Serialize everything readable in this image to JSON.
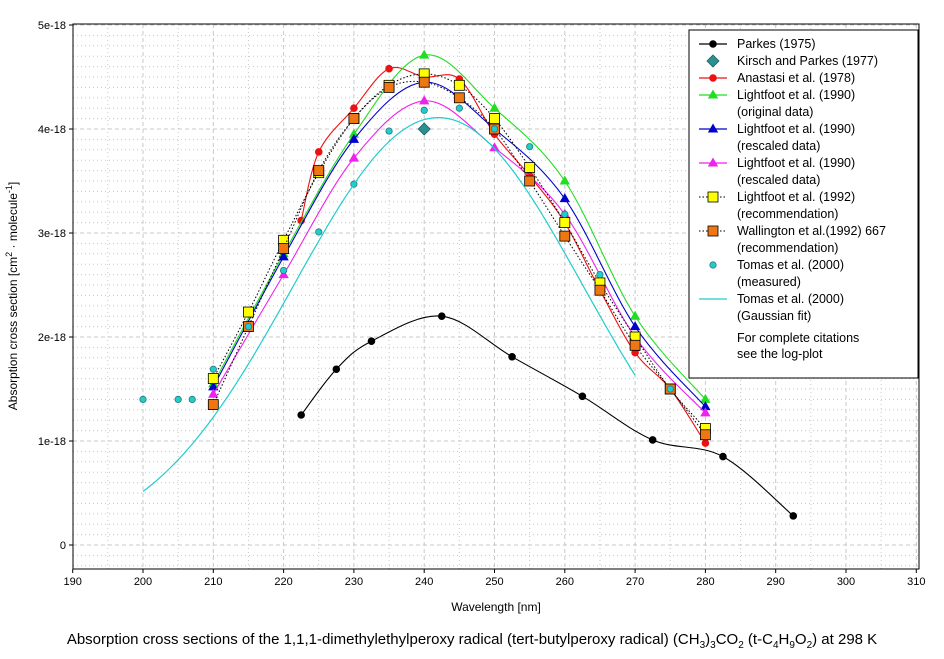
{
  "chart_data": {
    "type": "line",
    "title": "",
    "xlabel": "Wavelength [nm]",
    "ylabel_parts": [
      "Absorption cross section [cm",
      "2",
      " · molecule",
      "-1",
      "]"
    ],
    "xlim": [
      190,
      310
    ],
    "ylim": [
      0,
      5e-18
    ],
    "xticks": [
      190,
      200,
      210,
      220,
      230,
      240,
      250,
      260,
      270,
      280,
      290,
      300,
      310
    ],
    "yticks": [
      {
        "v": 0,
        "label": "0"
      },
      {
        "v": 1e-18,
        "label": "1e-18"
      },
      {
        "v": 2e-18,
        "label": "2e-18"
      },
      {
        "v": 3e-18,
        "label": "3e-18"
      },
      {
        "v": 4e-18,
        "label": "4e-18"
      },
      {
        "v": 5e-18,
        "label": "5e-18"
      }
    ],
    "grid": true,
    "legend_position": "top-right",
    "series": [
      {
        "name": "Parkes (1975)",
        "color": "#000000",
        "marker": "circle",
        "line": "smooth",
        "x": [
          222.5,
          227.5,
          232.5,
          242.5,
          252.5,
          262.5,
          272.5,
          282.5,
          292.5
        ],
        "y": [
          1.25e-18,
          1.69e-18,
          1.96e-18,
          2.2e-18,
          1.81e-18,
          1.43e-18,
          1.01e-18,
          8.5e-19,
          2.8e-19
        ]
      },
      {
        "name": "Kirsch and Parkes (1977)",
        "color": "#2a9090",
        "marker": "diamond",
        "line": "none",
        "x": [
          240
        ],
        "y": [
          4e-18
        ]
      },
      {
        "name": "Anastasi et al. (1978)",
        "color": "#ee1111",
        "marker": "circle",
        "line": "smooth",
        "x": [
          222.5,
          225,
          230,
          235,
          240,
          245,
          250,
          255,
          260,
          265,
          270,
          275,
          280
        ],
        "y": [
          3.12e-18,
          3.78e-18,
          4.2e-18,
          4.58e-18,
          4.5e-18,
          4.48e-18,
          3.95e-18,
          3.55e-18,
          3.1e-18,
          2.45e-18,
          1.85e-18,
          1.5e-18,
          9.8e-19
        ]
      },
      {
        "name": "Lightfoot et al. (1990)",
        "name2": "(original data)",
        "color": "#22dd22",
        "marker": "triangle",
        "line": "smooth",
        "x": [
          210,
          220,
          230,
          240,
          250,
          260,
          270,
          280
        ],
        "y": [
          1.55e-18,
          2.8e-18,
          3.95e-18,
          4.71e-18,
          4.2e-18,
          3.5e-18,
          2.2e-18,
          1.4e-18
        ]
      },
      {
        "name": "Lightfoot et al. (1990)",
        "name2": "(rescaled data)",
        "color": "#0000cc",
        "marker": "triangle",
        "line": "smooth",
        "x": [
          210,
          220,
          230,
          240,
          250,
          260,
          270,
          280
        ],
        "y": [
          1.52e-18,
          2.77e-18,
          3.9e-18,
          4.45e-18,
          4e-18,
          3.33e-18,
          2.1e-18,
          1.33e-18
        ]
      },
      {
        "name": "Lightfoot et al. (1990)",
        "name2": "(rescaled data)",
        "color": "#ee22ee",
        "marker": "triangle",
        "line": "smooth",
        "x": [
          210,
          220,
          230,
          240,
          250,
          260,
          270,
          280
        ],
        "y": [
          1.45e-18,
          2.6e-18,
          3.72e-18,
          4.27e-18,
          3.82e-18,
          3.18e-18,
          2e-18,
          1.27e-18
        ]
      },
      {
        "name": "Lightfoot et al. (1992)",
        "name2": "(recommendation)",
        "color": "#000000",
        "fill": "#ffff00",
        "marker": "square",
        "line": "dotted",
        "x": [
          210,
          215,
          220,
          225,
          230,
          235,
          240,
          245,
          250,
          255,
          260,
          265,
          270,
          275,
          280
        ],
        "y": [
          1.6e-18,
          2.24e-18,
          2.93e-18,
          3.58e-18,
          4.1e-18,
          4.42e-18,
          4.53e-18,
          4.42e-18,
          4.1e-18,
          3.63e-18,
          3.1e-18,
          2.52e-18,
          2e-18,
          1.5e-18,
          1.12e-18
        ]
      },
      {
        "name": "Wallington et al.(1992) 667",
        "name2": "(recommendation)",
        "color": "#000000",
        "fill": "#ee7711",
        "marker": "square",
        "line": "dotted",
        "x": [
          210,
          215,
          220,
          225,
          230,
          235,
          240,
          245,
          250,
          255,
          260,
          265,
          270,
          275,
          280
        ],
        "y": [
          1.35e-18,
          2.1e-18,
          2.85e-18,
          3.6e-18,
          4.1e-18,
          4.4e-18,
          4.45e-18,
          4.3e-18,
          4e-18,
          3.5e-18,
          2.97e-18,
          2.45e-18,
          1.92e-18,
          1.5e-18,
          1.06e-18
        ]
      },
      {
        "name": "Tomas et al. (2000)",
        "name2": "(measured)",
        "color": "#22bbbb",
        "fill": "#22cccc",
        "marker": "smallcircle",
        "line": "none",
        "x": [
          200,
          205,
          207,
          210,
          215,
          220,
          225,
          230,
          235,
          240,
          245,
          250,
          255,
          260,
          265,
          275
        ],
        "y": [
          1.4e-18,
          1.4e-18,
          1.4e-18,
          1.69e-18,
          2.1e-18,
          2.64e-18,
          3.01e-18,
          3.47e-18,
          3.98e-18,
          4.18e-18,
          4.2e-18,
          4e-18,
          3.83e-18,
          3.18e-18,
          2.6e-18,
          1.5e-18
        ]
      },
      {
        "name": "Tomas et al. (2000)",
        "name2": "(Gaussian fit)",
        "color": "#22cccc",
        "marker": "none",
        "line": "gauss",
        "gauss": {
          "amp": 4.11e-18,
          "center": 242,
          "sigma": 20.6
        },
        "xrange": [
          200,
          270
        ]
      }
    ],
    "annotation": [
      "For complete citations",
      "see the log-plot"
    ]
  },
  "caption": {
    "pre": "Absorption cross sections of the 1,1,1-dimethylethylperoxy radical (tert-butylperoxy radical) (CH",
    "s1": "3",
    "m1": ")",
    "s2": "3",
    "m2": "CO",
    "s3": "2",
    "m3": " (t-C",
    "s4": "4",
    "m4": "H",
    "s5": "9",
    "m5": "O",
    "s6": "2",
    "post": ") at 298 K"
  }
}
